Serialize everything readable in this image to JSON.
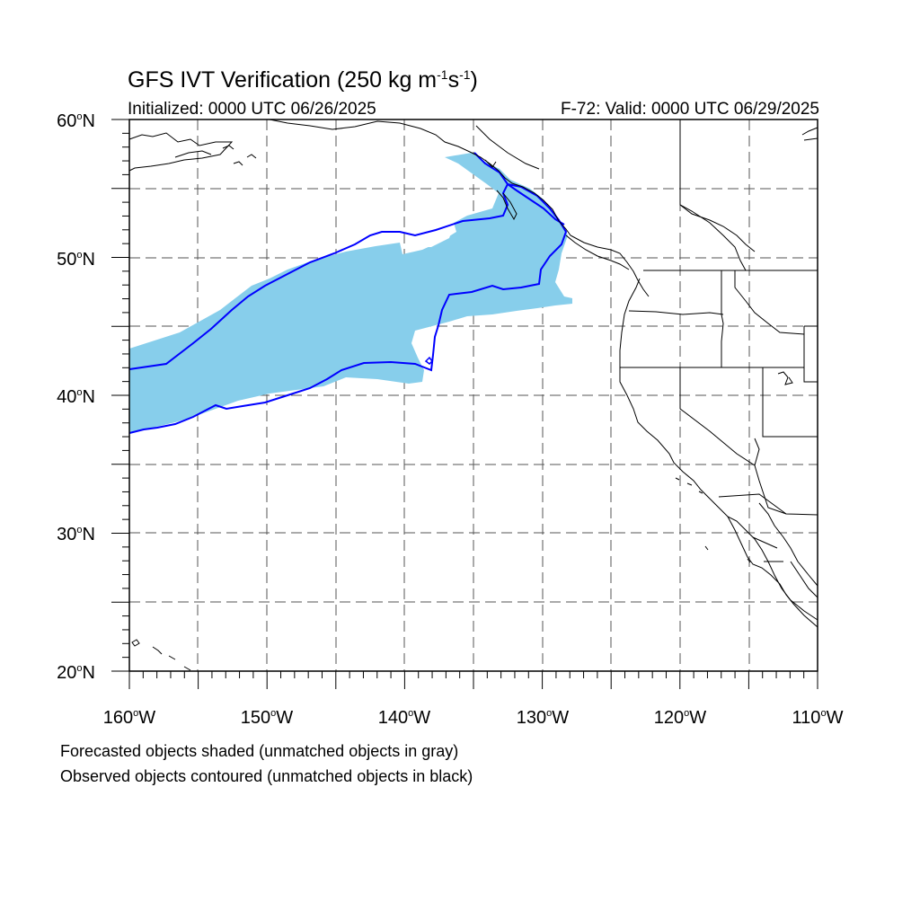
{
  "title": {
    "text": "GFS IVT Verification (250 kg m",
    "sup1": "-1",
    "mid": "s",
    "sup2": "-1",
    "end": ")"
  },
  "initialized": "Initialized: 0000 UTC 06/26/2025",
  "valid": "F-72: Valid: 0000 UTC 06/29/2025",
  "notes": [
    "Forecasted objects shaded (unmatched objects in gray)",
    "Observed objects contoured (unmatched objects in black)"
  ],
  "map": {
    "projection": "cylindrical-equidistant",
    "lon_range": [
      -160,
      -110
    ],
    "lat_range": [
      20,
      60
    ],
    "gridlines": "dashed",
    "lat_labels": [
      {
        "deg": "60",
        "suffix": "N",
        "value": 60
      },
      {
        "deg": "50",
        "suffix": "N",
        "value": 50
      },
      {
        "deg": "40",
        "suffix": "N",
        "value": 40
      },
      {
        "deg": "30",
        "suffix": "N",
        "value": 30
      },
      {
        "deg": "20",
        "suffix": "N",
        "value": 20
      }
    ],
    "lon_labels": [
      {
        "deg": "160",
        "suffix": "W",
        "value": -160
      },
      {
        "deg": "150",
        "suffix": "W",
        "value": -150
      },
      {
        "deg": "140",
        "suffix": "W",
        "value": -140
      },
      {
        "deg": "130",
        "suffix": "W",
        "value": -130
      },
      {
        "deg": "120",
        "suffix": "W",
        "value": -120
      },
      {
        "deg": "110",
        "suffix": "W",
        "value": -110
      }
    ],
    "colors": {
      "forecast_fill": "#87ceeb",
      "observed_contour": "#0000ff",
      "coastline": "#000000",
      "grid": "#555555"
    }
  }
}
